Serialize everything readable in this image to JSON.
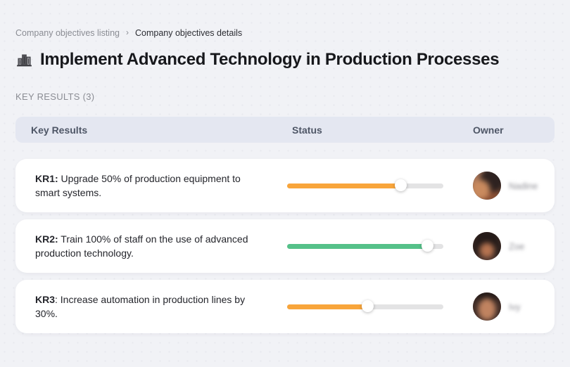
{
  "breadcrumb": {
    "separator": "›",
    "items": [
      {
        "label": "Company objectives listing"
      },
      {
        "label": "Company objectives details"
      }
    ]
  },
  "page": {
    "title": "Implement Advanced Technology in Production Processes",
    "title_icon": "buildings-icon",
    "section_label": "KEY RESULTS (3)"
  },
  "table": {
    "headers": {
      "key_results": "Key Results",
      "status": "Status",
      "owner": "Owner"
    },
    "rows": [
      {
        "kr_label": "KR1:",
        "kr_text": " Upgrade 50% of production equipment to smart systems.",
        "progress_percent": 73,
        "progress_color": "#f8a53b",
        "owner_name": "Nadine"
      },
      {
        "kr_label": "KR2:",
        "kr_text": " Train 100% of staff on the use of advanced production technology.",
        "progress_percent": 90,
        "progress_color": "#55c189",
        "owner_name": "Zoe"
      },
      {
        "kr_label": "KR3",
        "kr_text": ": Increase automation in production lines by 30%.",
        "progress_percent": 52,
        "progress_color": "#f8a53b",
        "owner_name": "Ivy"
      }
    ]
  },
  "colors": {
    "page_background": "#f1f2f6",
    "card_background": "#ffffff",
    "header_background": "#e4e7f1",
    "progress_track": "#e3e3e4",
    "progress_orange": "#f8a53b",
    "progress_green": "#55c189"
  }
}
